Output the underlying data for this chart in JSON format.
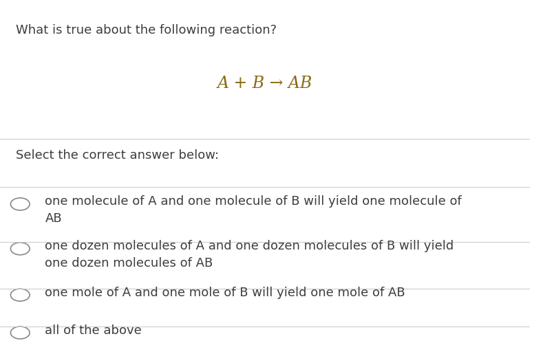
{
  "background_color": "#ffffff",
  "question_text": "What is true about the following reaction?",
  "reaction_text": "A + B → AB",
  "select_text": "Select the correct answer below:",
  "options": [
    "one molecule of A and one molecule of B will yield one molecule of\nAB",
    "one dozen molecules of A and one dozen molecules of B will yield\none dozen molecules of AB",
    "one mole of A and one mole of B will yield one mole of AB",
    "all of the above"
  ],
  "question_color": "#3d3d3d",
  "reaction_color": "#8b6914",
  "select_color": "#3d3d3d",
  "option_color": "#3d3d3d",
  "line_color": "#cccccc",
  "circle_edge_color": "#888888",
  "question_fontsize": 13,
  "reaction_fontsize": 17,
  "select_fontsize": 13,
  "option_fontsize": 13
}
